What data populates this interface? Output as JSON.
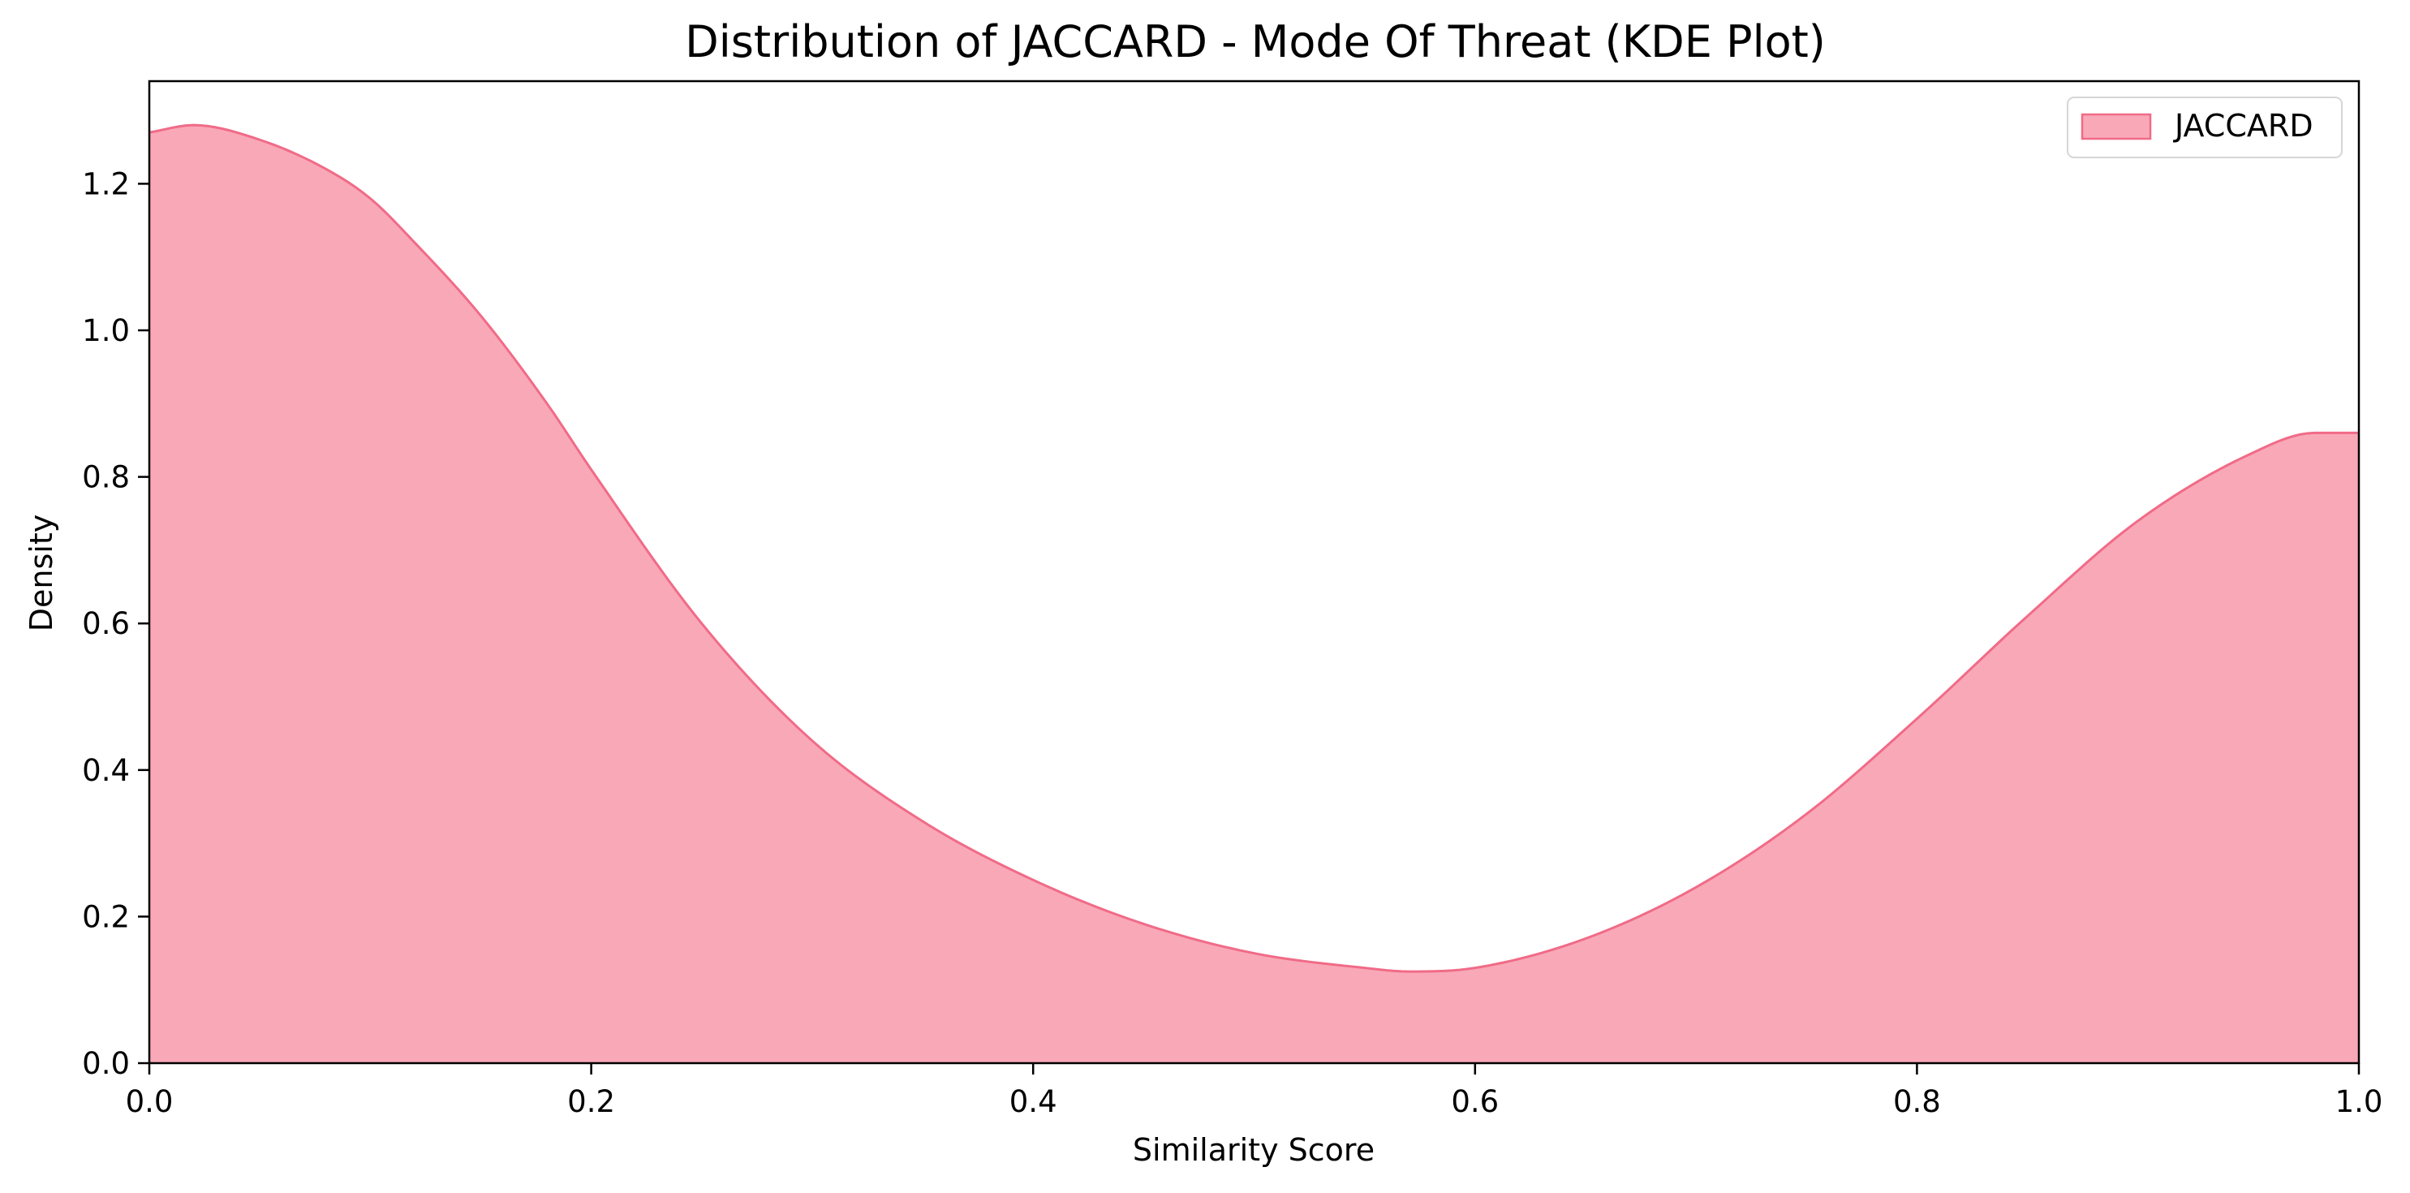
{
  "chart_data": {
    "type": "area",
    "title": "Distribution of JACCARD - Mode Of Threat (KDE Plot)",
    "xlabel": "Similarity Score",
    "ylabel": "Density",
    "xlim": [
      0.0,
      1.0
    ],
    "ylim": [
      0.0,
      1.34
    ],
    "x_ticks": [
      "0.0",
      "0.2",
      "0.4",
      "0.6",
      "0.8",
      "1.0"
    ],
    "y_ticks": [
      "0.0",
      "0.2",
      "0.4",
      "0.6",
      "0.8",
      "1.0",
      "1.2"
    ],
    "grid": false,
    "legend_position": "top-right",
    "series": [
      {
        "name": "JACCARD",
        "fill_color": "#f9a8b7",
        "line_color": "#f06b87",
        "x": [
          0.0,
          0.02,
          0.05,
          0.08,
          0.1,
          0.12,
          0.15,
          0.18,
          0.2,
          0.25,
          0.3,
          0.35,
          0.4,
          0.45,
          0.5,
          0.55,
          0.57,
          0.6,
          0.65,
          0.7,
          0.75,
          0.8,
          0.85,
          0.9,
          0.95,
          0.98,
          1.0
        ],
        "y": [
          1.27,
          1.28,
          1.26,
          1.22,
          1.18,
          1.12,
          1.02,
          0.9,
          0.81,
          0.6,
          0.44,
          0.33,
          0.25,
          0.19,
          0.15,
          0.13,
          0.125,
          0.13,
          0.17,
          0.24,
          0.34,
          0.47,
          0.61,
          0.74,
          0.83,
          0.86,
          0.86
        ]
      }
    ]
  }
}
